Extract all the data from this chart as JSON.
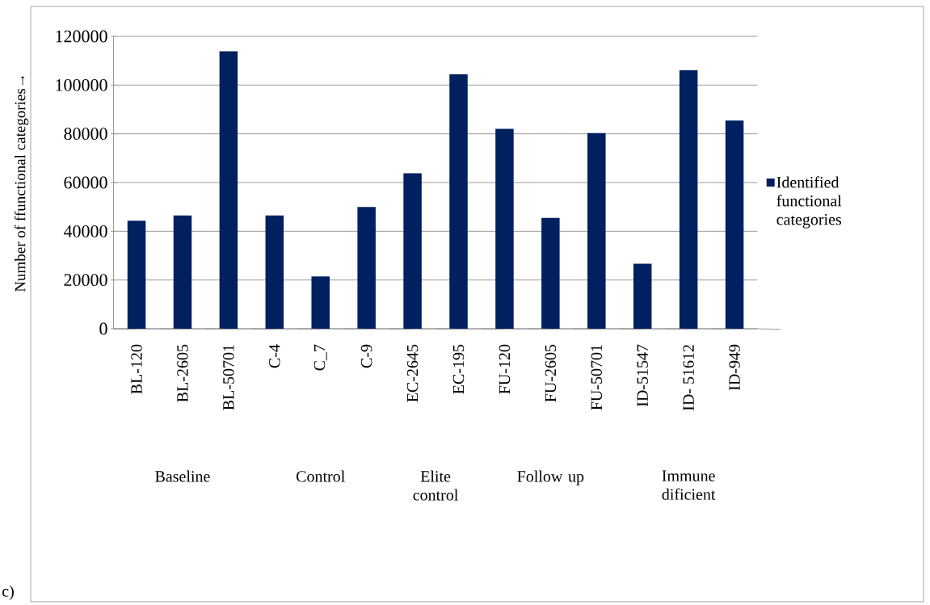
{
  "chart_data": {
    "type": "bar",
    "ylabel": "Number of ffunctional categories→",
    "categories": [
      "BL-120",
      "BL-2605",
      "BL-50701",
      "C-4",
      "C_7",
      "C-9",
      "EC-2645",
      "EC-195",
      "FU-120",
      "FU-2605",
      "FU-50701",
      "ID-51547",
      "ID- 51612",
      "ID-949"
    ],
    "series": [
      {
        "name": "Identified functional categories",
        "color": "#002060",
        "values": [
          44300,
          46500,
          113900,
          46500,
          21500,
          50000,
          63800,
          104400,
          82000,
          45500,
          80300,
          26700,
          106100,
          85400
        ]
      }
    ],
    "ylim": [
      0,
      120000
    ],
    "yticks": [
      0,
      20000,
      40000,
      60000,
      80000,
      100000,
      120000
    ],
    "grid": "y",
    "legend": "right",
    "annotations": [
      "Baseline",
      "Control",
      "Elite control",
      "Follow up",
      "Immune dificient",
      "c)"
    ]
  }
}
